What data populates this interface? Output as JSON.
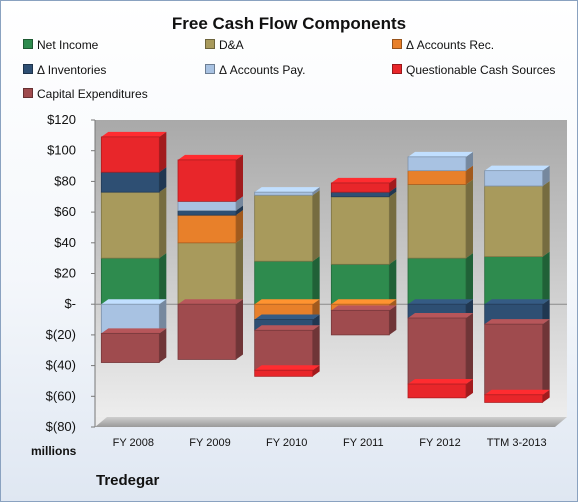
{
  "chart_data": {
    "type": "bar",
    "stacked": true,
    "title": "Free Cash Flow Components",
    "units_label": "millions",
    "footer": "Tredegar",
    "categories": [
      "FY 2008",
      "FY 2009",
      "FY 2010",
      "FY 2011",
      "FY 2012",
      "TTM 3-2013"
    ],
    "ylim": [
      -80,
      120
    ],
    "yticks": [
      120,
      100,
      80,
      60,
      40,
      20,
      0,
      -20,
      -40,
      -60,
      -80
    ],
    "ytick_labels": [
      "$120",
      "$100",
      "$80",
      "$60",
      "$40",
      "$20",
      "$-",
      "$(20)",
      "$(40)",
      "$(60)",
      "$(80)"
    ],
    "grid": false,
    "legend_position": "top",
    "series": [
      {
        "name": "Net Income",
        "color": "#2e8b4e",
        "values": [
          30,
          0,
          28,
          26,
          30,
          31
        ]
      },
      {
        "name": "D&A",
        "color": "#a89a5c",
        "values": [
          43,
          40,
          43,
          44,
          48,
          46
        ]
      },
      {
        "name": "Δ Accounts Rec.",
        "color": "#e8802a",
        "values": [
          0,
          18,
          -10,
          -4,
          9,
          0
        ]
      },
      {
        "name": "Δ Inventories",
        "color": "#2e4f73",
        "values": [
          13,
          3,
          -7,
          3,
          -9,
          -13
        ]
      },
      {
        "name": "Δ Accounts Pay.",
        "color": "#a8c2e2",
        "values": [
          -19,
          6,
          2,
          0,
          9,
          10
        ]
      },
      {
        "name": "Questionable Cash Sources",
        "color": "#e8262a",
        "values": [
          23,
          27,
          0,
          6,
          0,
          0
        ]
      },
      {
        "name": "Capital Expenditures",
        "color": "#9f4b4e",
        "values": [
          -19,
          -36,
          -26,
          -16,
          -43,
          -46
        ]
      }
    ],
    "extra_negative": [
      {
        "series_index": 5,
        "category_index": 2,
        "value": -4
      },
      {
        "series_index": 5,
        "category_index": 4,
        "value": -9
      },
      {
        "series_index": 5,
        "category_index": 5,
        "value": -5
      }
    ]
  }
}
